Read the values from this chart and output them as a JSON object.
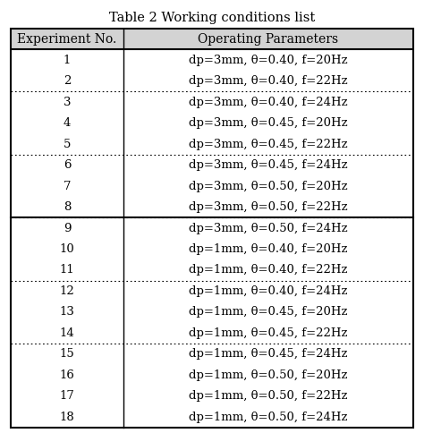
{
  "title": "Table 2 Working conditions list",
  "col_headers": [
    "Experiment No.",
    "Operating Parameters"
  ],
  "rows": [
    [
      "1",
      "dp=3mm, θ=0.40, f=20Hz"
    ],
    [
      "2",
      "dp=3mm, θ=0.40, f=22Hz"
    ],
    [
      "3",
      "dp=3mm, θ=0.40, f=24Hz"
    ],
    [
      "4",
      "dp=3mm, θ=0.45, f=20Hz"
    ],
    [
      "5",
      "dp=3mm, θ=0.45, f=22Hz"
    ],
    [
      "6",
      "dp=3mm, θ=0.45, f=24Hz"
    ],
    [
      "7",
      "dp=3mm, θ=0.50, f=20Hz"
    ],
    [
      "8",
      "dp=3mm, θ=0.50, f=22Hz"
    ],
    [
      "9",
      "dp=3mm, θ=0.50, f=24Hz"
    ],
    [
      "10",
      "dp=1mm, θ=0.40, f=20Hz"
    ],
    [
      "11",
      "dp=1mm, θ=0.40, f=22Hz"
    ],
    [
      "12",
      "dp=1mm, θ=0.40, f=24Hz"
    ],
    [
      "13",
      "dp=1mm, θ=0.45, f=20Hz"
    ],
    [
      "14",
      "dp=1mm, θ=0.45, f=22Hz"
    ],
    [
      "15",
      "dp=1mm, θ=0.45, f=24Hz"
    ],
    [
      "16",
      "dp=1mm, θ=0.50, f=20Hz"
    ],
    [
      "17",
      "dp=1mm, θ=0.50, f=22Hz"
    ],
    [
      "18",
      "dp=1mm, θ=0.50, f=24Hz"
    ]
  ],
  "dotted_separator_after_rows": [
    2,
    5,
    8,
    11,
    14
  ],
  "solid_separator_after_rows": [
    8
  ],
  "header_bg": "#d3d3d3",
  "bg_color": "#ffffff",
  "border_color": "#000000",
  "text_color": "#000000",
  "title_fontsize": 10.5,
  "header_fontsize": 10,
  "cell_fontsize": 9.5,
  "col_split": 0.28,
  "fig_width": 4.74,
  "fig_height": 4.84,
  "dpi": 100
}
